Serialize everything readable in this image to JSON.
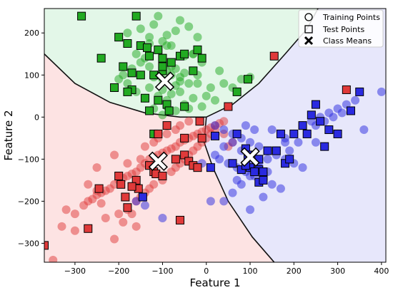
{
  "chart_data": {
    "type": "scatter",
    "title": "",
    "xlabel": "Feature 1",
    "ylabel": "Feature 2",
    "xlim": [
      -370,
      410
    ],
    "ylim": [
      -345,
      258
    ],
    "xticks": [
      -300,
      -200,
      -100,
      0,
      100,
      200,
      300,
      400
    ],
    "yticks": [
      200,
      100,
      0,
      -100,
      -200,
      -300
    ],
    "grid": false,
    "legend_position": "top-right",
    "legend": [
      {
        "label": "Training Points",
        "marker": "circle"
      },
      {
        "label": "Test Points",
        "marker": "square"
      },
      {
        "label": "Class Means",
        "marker": "x"
      }
    ],
    "class_colors": {
      "green": {
        "point": "#22aa22",
        "region": "#e3f7e8"
      },
      "red": {
        "point": "#e03a3a",
        "region": "#fde3e3"
      },
      "blue": {
        "point": "#2a2ae0",
        "region": "#e7e7fb"
      }
    },
    "class_means": [
      {
        "class": "green",
        "x": -95,
        "y": 85
      },
      {
        "class": "red",
        "x": -110,
        "y": -105
      },
      {
        "class": "blue",
        "x": 100,
        "y": -95
      }
    ],
    "decision_boundaries": [
      {
        "name": "green-red",
        "points": [
          [
            -370,
            150
          ],
          [
            -300,
            80
          ],
          [
            -220,
            35
          ],
          [
            -140,
            10
          ],
          [
            -60,
            0
          ],
          [
            0,
            0
          ]
        ]
      },
      {
        "name": "green-blue",
        "points": [
          [
            0,
            0
          ],
          [
            60,
            30
          ],
          [
            120,
            80
          ],
          [
            180,
            150
          ],
          [
            230,
            210
          ],
          [
            255,
            258
          ]
        ]
      },
      {
        "name": "red-blue",
        "points": [
          [
            0,
            0
          ],
          [
            -5,
            -60
          ],
          [
            15,
            -120
          ],
          [
            50,
            -200
          ],
          [
            105,
            -285
          ],
          [
            155,
            -345
          ]
        ]
      }
    ],
    "series": [
      {
        "class": "green",
        "kind": "train",
        "x": [
          -180,
          -150,
          -120,
          -90,
          -70,
          -60,
          -40,
          -20,
          -130,
          -100,
          -80,
          -110,
          -160,
          -140,
          -50,
          -30,
          -10,
          -170,
          -130,
          -90,
          -70,
          -50,
          -120,
          -100,
          -80,
          -150,
          -200,
          -60,
          -40,
          -20,
          -130,
          -100,
          -70,
          -110,
          -80,
          -60,
          -140,
          -90,
          -30,
          0,
          20,
          -190,
          -160,
          -50,
          -120,
          -90,
          -70,
          -100,
          -40,
          -10,
          10,
          -80,
          -150,
          -180,
          -60,
          40,
          60,
          80,
          -30,
          -20,
          30,
          100,
          -130,
          -110,
          -90
        ],
        "y": [
          200,
          210,
          220,
          195,
          205,
          230,
          215,
          190,
          175,
          180,
          170,
          160,
          150,
          140,
          145,
          150,
          130,
          115,
          120,
          110,
          115,
          105,
          95,
          90,
          100,
          100,
          90,
          85,
          80,
          80,
          70,
          65,
          75,
          50,
          55,
          60,
          45,
          40,
          45,
          50,
          40,
          100,
          60,
          30,
          20,
          25,
          15,
          5,
          20,
          25,
          70,
          120,
          130,
          80,
          95,
          80,
          70,
          90,
          150,
          100,
          110,
          95,
          190,
          240,
          170
        ]
      },
      {
        "class": "green",
        "kind": "test",
        "x": [
          -285,
          -160,
          -200,
          -180,
          -150,
          -135,
          -130,
          -110,
          -100,
          -80,
          -60,
          -50,
          -30,
          -10,
          -240,
          -190,
          -170,
          -150,
          -120,
          -100,
          -170,
          -110,
          -90,
          -140,
          -50,
          -130,
          -85,
          -20,
          70,
          95,
          -210,
          -180,
          -100,
          -120
        ],
        "y": [
          240,
          240,
          190,
          175,
          170,
          165,
          145,
          160,
          140,
          130,
          145,
          150,
          110,
          140,
          140,
          120,
          105,
          100,
          100,
          110,
          65,
          40,
          30,
          45,
          25,
          15,
          15,
          160,
          60,
          90,
          70,
          60,
          120,
          -40
        ]
      },
      {
        "class": "red",
        "kind": "train",
        "x": [
          -300,
          -330,
          -320,
          -280,
          -270,
          -260,
          -250,
          -240,
          -230,
          -220,
          -210,
          -200,
          -190,
          -180,
          -170,
          -160,
          -150,
          -140,
          -130,
          -120,
          -110,
          -100,
          -90,
          -80,
          -70,
          -60,
          -50,
          -40,
          -30,
          -20,
          -10,
          0,
          10,
          20,
          30,
          40,
          -200,
          -180,
          -160,
          -150,
          -140,
          -130,
          -120,
          -100,
          -80,
          -70,
          -60,
          -50,
          -40,
          -30,
          -20,
          -10,
          0,
          10,
          20,
          -210,
          -160,
          -230,
          -190,
          -170,
          -250,
          -270,
          -180,
          -150,
          -120,
          -90,
          -60,
          -40,
          -250,
          -210,
          -140,
          -110,
          -70,
          -300,
          -240,
          -160,
          40,
          50,
          60,
          -350
        ],
        "y": [
          -270,
          -260,
          -220,
          -210,
          -200,
          -195,
          -185,
          -180,
          -175,
          -170,
          -160,
          -150,
          -145,
          -140,
          -135,
          -130,
          -120,
          -110,
          -100,
          -95,
          -90,
          -85,
          -80,
          -75,
          -70,
          -60,
          -55,
          -50,
          -45,
          -40,
          -35,
          -30,
          -25,
          -20,
          -15,
          -10,
          -230,
          -220,
          -200,
          -190,
          -180,
          -170,
          -160,
          -150,
          -130,
          -120,
          -110,
          -100,
          -90,
          -80,
          -70,
          -60,
          -50,
          -40,
          -30,
          -290,
          -260,
          -240,
          -250,
          -230,
          -175,
          -160,
          -110,
          -100,
          -60,
          -40,
          -20,
          -10,
          -120,
          -90,
          -70,
          -50,
          -30,
          -230,
          -205,
          -160,
          -40,
          -70,
          -60,
          -340
        ]
      },
      {
        "class": "red",
        "kind": "test",
        "x": [
          -370,
          -270,
          -245,
          -200,
          -195,
          -185,
          -160,
          -180,
          -155,
          -130,
          -120,
          -115,
          -100,
          -110,
          -90,
          -70,
          -50,
          -40,
          -30,
          -20,
          -15,
          -10,
          50,
          320,
          155,
          -60,
          -50,
          -170
        ],
        "y": [
          -305,
          -265,
          -170,
          -140,
          -160,
          -190,
          -150,
          -215,
          -170,
          -115,
          -130,
          -135,
          -140,
          -40,
          -20,
          -100,
          -90,
          -105,
          -115,
          -120,
          -10,
          -50,
          25,
          65,
          145,
          -245,
          -50,
          -165
        ],
        "note_colors": {}
      },
      {
        "class": "blue",
        "kind": "train",
        "x": [
          20,
          40,
          60,
          80,
          100,
          120,
          140,
          160,
          180,
          200,
          220,
          240,
          260,
          280,
          300,
          320,
          340,
          30,
          50,
          70,
          90,
          110,
          130,
          150,
          170,
          190,
          210,
          230,
          250,
          270,
          290,
          310,
          40,
          60,
          80,
          100,
          120,
          140,
          160,
          180,
          200,
          220,
          60,
          80,
          100,
          120,
          140,
          40,
          20,
          -10,
          -100,
          -140,
          -160,
          110,
          150,
          180,
          250,
          270,
          300,
          360,
          400,
          130,
          100,
          70,
          90,
          10
        ],
        "y": [
          -20,
          -30,
          -40,
          -50,
          -60,
          -70,
          -80,
          -90,
          -100,
          -110,
          -120,
          -10,
          0,
          10,
          20,
          30,
          40,
          -100,
          -110,
          -120,
          -130,
          -140,
          -150,
          -160,
          -170,
          -80,
          -60,
          -40,
          -20,
          -10,
          0,
          10,
          -200,
          -180,
          -160,
          -140,
          -120,
          -100,
          -80,
          -60,
          -40,
          -20,
          -60,
          -80,
          -100,
          -110,
          -130,
          -70,
          -90,
          -110,
          -240,
          -210,
          -200,
          -30,
          -30,
          -50,
          -60,
          -70,
          -40,
          -30,
          60,
          -190,
          -220,
          -150,
          -20,
          -200
        ]
      },
      {
        "class": "blue",
        "kind": "test",
        "x": [
          -145,
          20,
          10,
          70,
          60,
          90,
          100,
          120,
          130,
          140,
          120,
          160,
          170,
          180,
          190,
          200,
          220,
          230,
          240,
          250,
          260,
          270,
          280,
          300,
          330,
          350,
          80,
          90,
          95,
          120,
          130,
          110,
          130
        ],
        "y": [
          -190,
          -45,
          -120,
          -40,
          -110,
          -75,
          -120,
          -100,
          -140,
          -80,
          -125,
          -80,
          -40,
          -110,
          -100,
          -40,
          -20,
          -40,
          5,
          30,
          -10,
          -70,
          -30,
          -40,
          15,
          60,
          -125,
          -115,
          -90,
          -155,
          -150,
          -130,
          -130
        ]
      }
    ]
  }
}
